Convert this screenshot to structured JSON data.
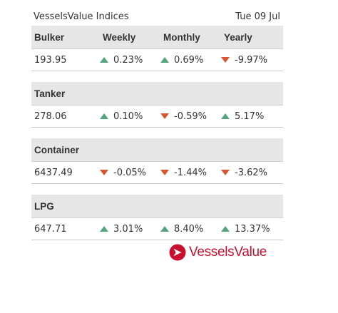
{
  "header": {
    "title": "VesselsValue Indices",
    "date": "Tue 09 Jul"
  },
  "columns": {
    "weekly": "Weekly",
    "monthly": "Monthly",
    "yearly": "Yearly"
  },
  "sections": [
    {
      "name": "Bulker",
      "value": "193.95",
      "weekly": {
        "text": "0.23%",
        "direction": "up"
      },
      "monthly": {
        "text": "0.69%",
        "direction": "up"
      },
      "yearly": {
        "text": "-9.97%",
        "direction": "down"
      }
    },
    {
      "name": "Tanker",
      "value": "278.06",
      "weekly": {
        "text": "0.10%",
        "direction": "up"
      },
      "monthly": {
        "text": "-0.59%",
        "direction": "down"
      },
      "yearly": {
        "text": "5.17%",
        "direction": "up"
      }
    },
    {
      "name": "Container",
      "value": "6437.49",
      "weekly": {
        "text": "-0.05%",
        "direction": "down"
      },
      "monthly": {
        "text": "-1.44%",
        "direction": "down"
      },
      "yearly": {
        "text": "-3.62%",
        "direction": "down"
      }
    },
    {
      "name": "LPG",
      "value": "647.71",
      "weekly": {
        "text": "3.01%",
        "direction": "up"
      },
      "monthly": {
        "text": "8.40%",
        "direction": "up"
      },
      "yearly": {
        "text": "13.37%",
        "direction": "up"
      }
    }
  ],
  "logo": {
    "text": "VesselsValue",
    "icon": "vesselsvalue-logo-icon",
    "color": "#c8102e"
  },
  "colors": {
    "up": "#54a57e",
    "down": "#d9542f",
    "header_bg": "#e6e6e6"
  }
}
